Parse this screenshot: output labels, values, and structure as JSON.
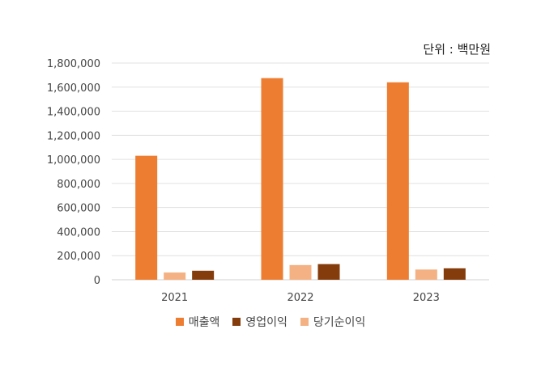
{
  "chart_data": {
    "type": "bar",
    "unit_label": "단위 : 백만원",
    "categories": [
      "2021",
      "2022",
      "2023"
    ],
    "series": [
      {
        "name": "매출액",
        "color": "#ED7D31",
        "values": [
          1030000,
          1675000,
          1640000
        ]
      },
      {
        "name": "당기순이익",
        "color": "#F4B183",
        "values": [
          60000,
          122000,
          85000
        ]
      },
      {
        "name": "영업이익",
        "color": "#843C0C",
        "values": [
          75000,
          130000,
          95000
        ]
      }
    ],
    "legend_order": [
      0,
      2,
      1
    ],
    "ylim": [
      0,
      1800000
    ],
    "yticks": [
      "0",
      "200,000",
      "400,000",
      "600,000",
      "800,000",
      "1,000,000",
      "1,200,000",
      "1,400,000",
      "1,600,000",
      "1,800,000"
    ],
    "grid": true,
    "legend_position": "bottom"
  }
}
